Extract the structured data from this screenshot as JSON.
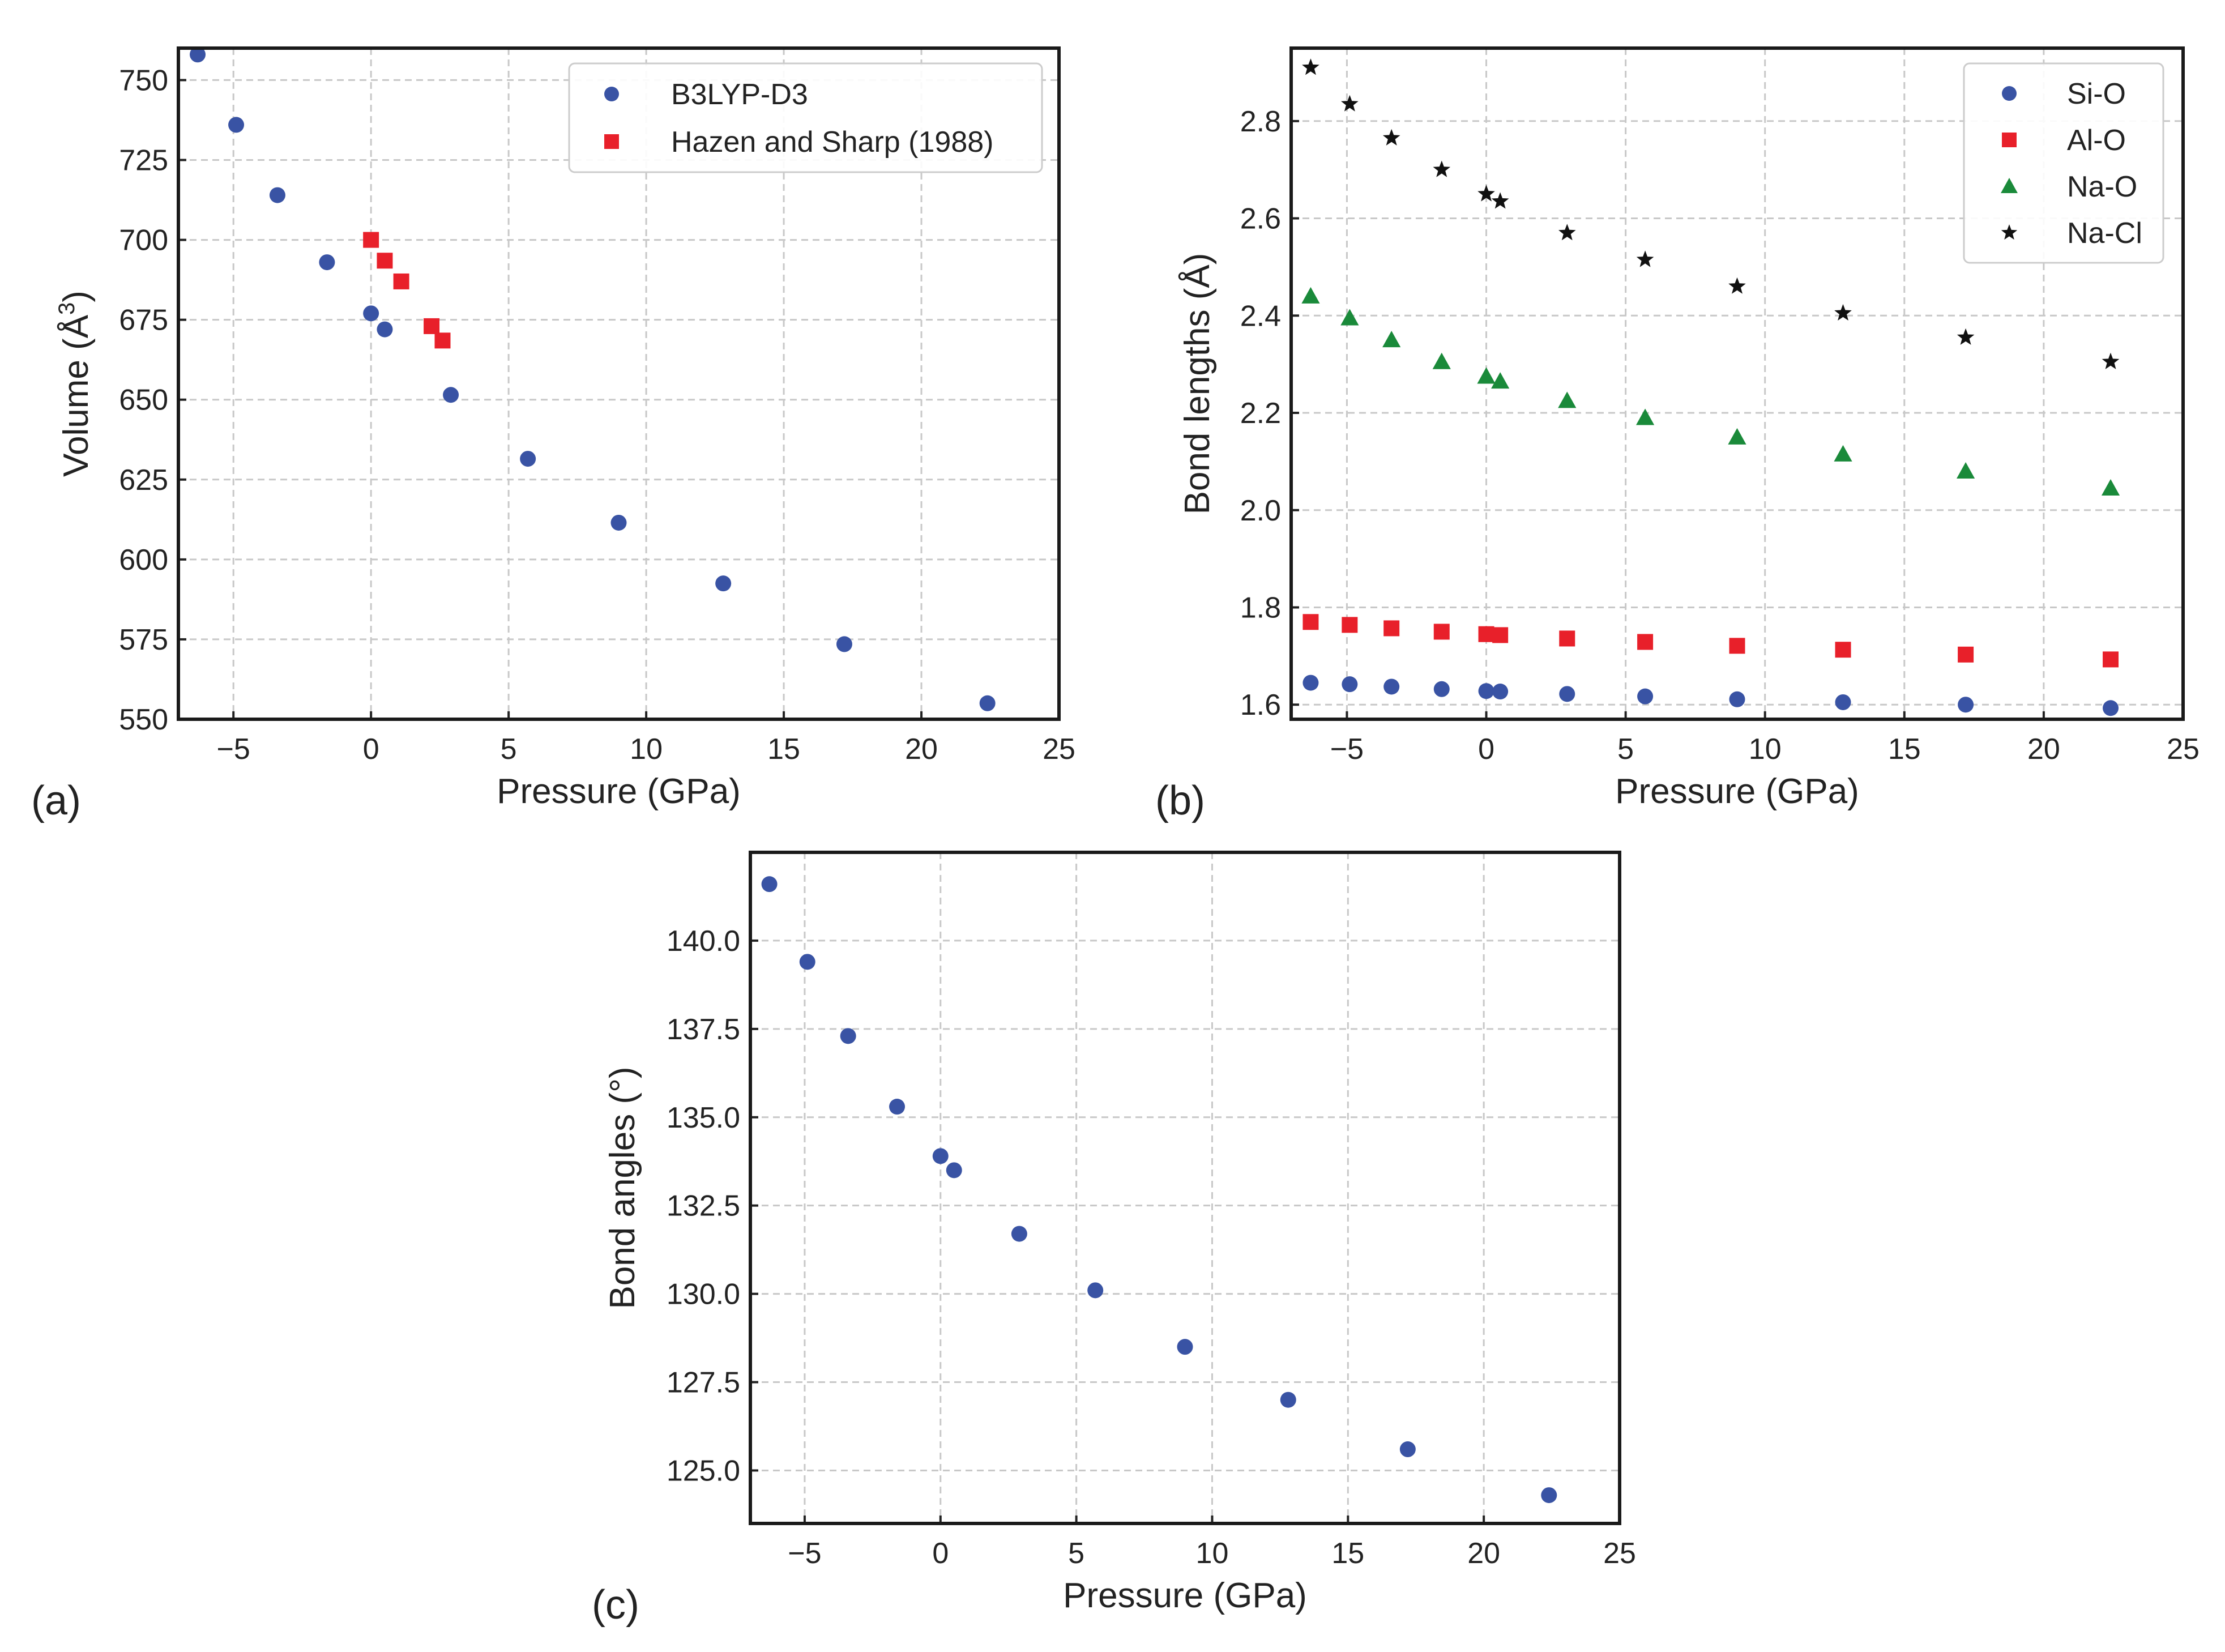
{
  "figure": {
    "panel_labels": [
      "(a)",
      "(b)",
      "(c)"
    ]
  },
  "chart_data": [
    {
      "type": "scatter",
      "panel": "(a)",
      "title": "",
      "xlabel": "Pressure (GPa)",
      "ylabel": "Volume (Å",
      "ylabel_sup": "3",
      "ylabel_close": ")",
      "xlim": [
        -7,
        25
      ],
      "ylim": [
        550,
        760
      ],
      "xticks": [
        -5,
        0,
        5,
        10,
        15,
        20,
        25
      ],
      "xtick_labels": [
        "−5",
        "0",
        "5",
        "10",
        "15",
        "20",
        "25"
      ],
      "yticks": [
        550,
        575,
        600,
        625,
        650,
        675,
        700,
        725,
        750
      ],
      "ytick_labels": [
        "550",
        "575",
        "600",
        "625",
        "650",
        "675",
        "700",
        "725",
        "750"
      ],
      "grid": true,
      "legend_position": "top-right",
      "series": [
        {
          "name": "B3LYP-D3",
          "marker": "circle",
          "color": "#3953a4",
          "x": [
            -6.3,
            -4.9,
            -3.4,
            -1.6,
            0.0,
            0.5,
            2.9,
            5.7,
            9.0,
            12.8,
            17.2,
            22.4
          ],
          "y": [
            758,
            736,
            714,
            693,
            677,
            672,
            651.5,
            631.5,
            611.5,
            592.5,
            573.5,
            555
          ]
        },
        {
          "name": "Hazen and Sharp (1988)",
          "marker": "square",
          "color": "#e8202a",
          "x": [
            0.0,
            0.5,
            1.1,
            2.2,
            2.6
          ],
          "y": [
            700,
            693.5,
            687,
            673,
            668.5
          ]
        }
      ]
    },
    {
      "type": "scatter",
      "panel": "(b)",
      "title": "",
      "xlabel": "Pressure (GPa)",
      "ylabel": "Bond lengths (Å)",
      "xlim": [
        -7,
        25
      ],
      "ylim": [
        1.57,
        2.95
      ],
      "xticks": [
        -5,
        0,
        5,
        10,
        15,
        20,
        25
      ],
      "xtick_labels": [
        "−5",
        "0",
        "5",
        "10",
        "15",
        "20",
        "25"
      ],
      "yticks": [
        1.6,
        1.8,
        2.0,
        2.2,
        2.4,
        2.6,
        2.8
      ],
      "ytick_labels": [
        "1.6",
        "1.8",
        "2.0",
        "2.2",
        "2.4",
        "2.6",
        "2.8"
      ],
      "grid": true,
      "legend_position": "top-right",
      "series": [
        {
          "name": "Si-O",
          "marker": "circle",
          "color": "#3953a4",
          "x": [
            -6.3,
            -4.9,
            -3.4,
            -1.6,
            0.0,
            0.5,
            2.9,
            5.7,
            9.0,
            12.8,
            17.2,
            22.4
          ],
          "y": [
            1.645,
            1.642,
            1.637,
            1.632,
            1.628,
            1.627,
            1.622,
            1.617,
            1.611,
            1.605,
            1.6,
            1.593
          ]
        },
        {
          "name": "Al-O",
          "marker": "square",
          "color": "#e8202a",
          "x": [
            -6.3,
            -4.9,
            -3.4,
            -1.6,
            0.0,
            0.5,
            2.9,
            5.7,
            9.0,
            12.8,
            17.2,
            22.4
          ],
          "y": [
            1.77,
            1.764,
            1.757,
            1.75,
            1.745,
            1.743,
            1.736,
            1.729,
            1.721,
            1.713,
            1.703,
            1.693
          ]
        },
        {
          "name": "Na-O",
          "marker": "triangle",
          "color": "#1a8a3a",
          "x": [
            -6.3,
            -4.9,
            -3.4,
            -1.6,
            0.0,
            0.5,
            2.9,
            5.7,
            9.0,
            12.8,
            17.2,
            22.4
          ],
          "y": [
            2.44,
            2.395,
            2.35,
            2.305,
            2.275,
            2.265,
            2.225,
            2.19,
            2.15,
            2.115,
            2.08,
            2.045
          ]
        },
        {
          "name": "Na-Cl",
          "marker": "star",
          "color": "#111111",
          "x": [
            -6.3,
            -4.9,
            -3.4,
            -1.6,
            0.0,
            0.5,
            2.9,
            5.7,
            9.0,
            12.8,
            17.2,
            22.4
          ],
          "y": [
            2.91,
            2.835,
            2.765,
            2.7,
            2.65,
            2.635,
            2.57,
            2.515,
            2.46,
            2.405,
            2.355,
            2.305
          ]
        }
      ]
    },
    {
      "type": "scatter",
      "panel": "(c)",
      "title": "",
      "xlabel": "Pressure (GPa)",
      "ylabel": "Bond angles (°)",
      "xlim": [
        -7,
        25
      ],
      "ylim": [
        123.5,
        142.5
      ],
      "xticks": [
        -5,
        0,
        5,
        10,
        15,
        20,
        25
      ],
      "xtick_labels": [
        "−5",
        "0",
        "5",
        "10",
        "15",
        "20",
        "25"
      ],
      "yticks": [
        125.0,
        127.5,
        130.0,
        132.5,
        135.0,
        137.5,
        140.0
      ],
      "ytick_labels": [
        "125.0",
        "127.5",
        "130.0",
        "132.5",
        "135.0",
        "137.5",
        "140.0"
      ],
      "grid": true,
      "series": [
        {
          "name": "Bond angles",
          "marker": "circle",
          "color": "#3953a4",
          "x": [
            -6.3,
            -4.9,
            -3.4,
            -1.6,
            0.0,
            0.5,
            2.9,
            5.7,
            9.0,
            12.8,
            17.2,
            22.4
          ],
          "y": [
            141.6,
            139.4,
            137.3,
            135.3,
            133.9,
            133.5,
            131.7,
            130.1,
            128.5,
            127.0,
            125.6,
            124.3
          ]
        }
      ]
    }
  ]
}
